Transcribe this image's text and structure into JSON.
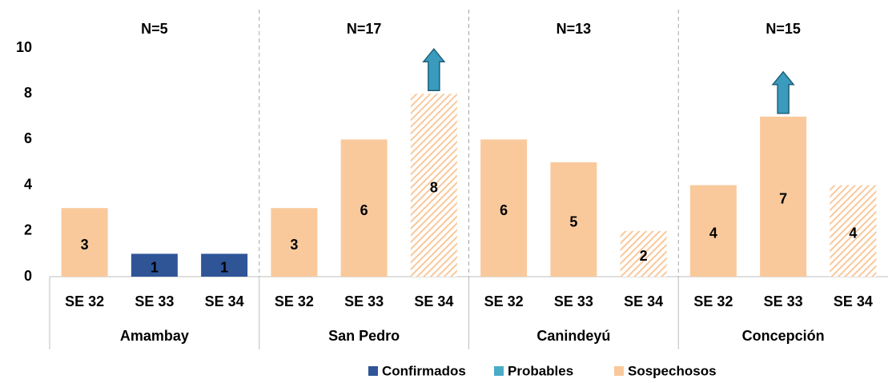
{
  "chart_data": {
    "type": "bar",
    "stacked": true,
    "categories": [
      "SE 32",
      "SE 33",
      "SE 34",
      "SE 32",
      "SE 33",
      "SE 34",
      "SE 32",
      "SE 33",
      "SE 34",
      "SE 32",
      "SE 33",
      "SE 34"
    ],
    "groups": [
      {
        "name": "Amambay",
        "annotation": "N=5"
      },
      {
        "name": "San Pedro",
        "annotation": "N=17"
      },
      {
        "name": "Canindeyú",
        "annotation": "N=13"
      },
      {
        "name": "Concepción",
        "annotation": "N=15"
      }
    ],
    "series": [
      {
        "name": "Confirmados",
        "color": "#2f5597",
        "values": [
          null,
          1,
          1,
          null,
          null,
          null,
          null,
          null,
          null,
          null,
          null,
          null
        ]
      },
      {
        "name": "Probables",
        "color": "#4bacc6",
        "values": [
          null,
          null,
          null,
          null,
          null,
          null,
          null,
          null,
          null,
          null,
          null,
          null
        ]
      },
      {
        "name": "Sospechosos",
        "color": "#f9c99c",
        "values": [
          3,
          null,
          null,
          3,
          6,
          8,
          6,
          5,
          2,
          4,
          7,
          4
        ],
        "hatched": [
          false,
          false,
          false,
          false,
          false,
          true,
          false,
          false,
          true,
          false,
          false,
          true
        ],
        "up_arrow": [
          false,
          false,
          false,
          false,
          false,
          true,
          false,
          false,
          false,
          false,
          true,
          false
        ]
      }
    ],
    "ylim": [
      0,
      10
    ],
    "yticks": [
      0,
      2,
      4,
      6,
      8,
      10
    ],
    "grid": false,
    "legend": "bottom"
  }
}
